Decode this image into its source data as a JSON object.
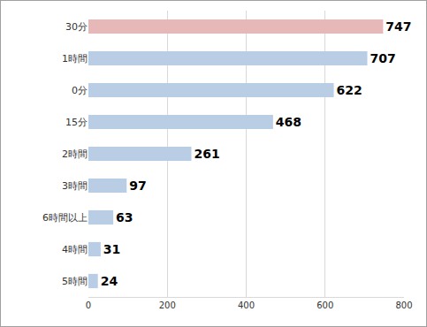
{
  "chart_data": {
    "type": "bar",
    "orientation": "horizontal",
    "categories": [
      "30分",
      "1時間",
      "0分",
      "15分",
      "2時間",
      "3時間",
      "6時間以上",
      "4時間",
      "5時間"
    ],
    "values": [
      747,
      707,
      622,
      468,
      261,
      97,
      63,
      31,
      24
    ],
    "colors": [
      "#e6b9b8",
      "#b9cde5",
      "#b9cde5",
      "#b9cde5",
      "#b9cde5",
      "#b9cde5",
      "#b9cde5",
      "#b9cde5",
      "#b9cde5"
    ],
    "xlim": [
      0,
      800
    ],
    "xticks": [
      0,
      200,
      400,
      600,
      800
    ],
    "grid": true,
    "data_labels": true
  }
}
